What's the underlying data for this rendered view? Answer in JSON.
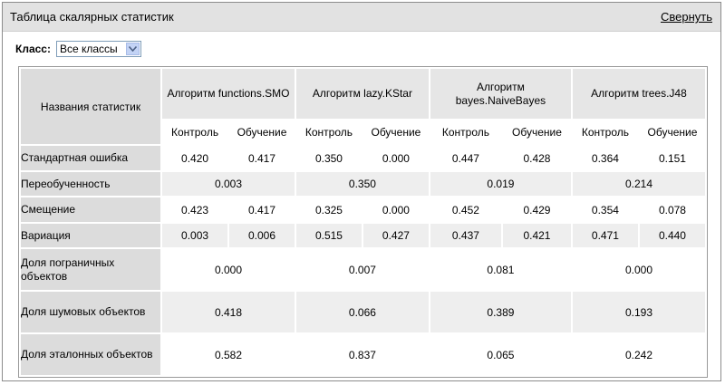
{
  "header": {
    "title": "Таблица скалярных статистик",
    "collapse_label": "Свернуть"
  },
  "class_filter": {
    "label": "Класс:",
    "value": "Все классы"
  },
  "table": {
    "names_header": "Названия статистик",
    "algorithms": [
      {
        "name": "Алгоритм functions.SMO"
      },
      {
        "name": "Алгоритм lazy.KStar"
      },
      {
        "name": "Алгоритм bayes.NaiveBayes"
      },
      {
        "name": "Алгоритм trees.J48"
      }
    ],
    "sub_headers": [
      "Контроль",
      "Обучение"
    ],
    "rows": [
      {
        "name": "Стандартная ошибка",
        "values": [
          "0.420",
          "0.417",
          "0.350",
          "0.000",
          "0.447",
          "0.428",
          "0.364",
          "0.151"
        ]
      },
      {
        "name": "Переобученность",
        "values": [
          "0.003",
          "0.350",
          "0.019",
          "0.214"
        ]
      },
      {
        "name": "Смещение",
        "values": [
          "0.423",
          "0.417",
          "0.325",
          "0.000",
          "0.452",
          "0.429",
          "0.354",
          "0.078"
        ]
      },
      {
        "name": "Вариация",
        "values": [
          "0.003",
          "0.006",
          "0.515",
          "0.427",
          "0.437",
          "0.421",
          "0.471",
          "0.440"
        ]
      },
      {
        "name": "Доля пограничных объектов",
        "values": [
          "0.000",
          "0.007",
          "0.081",
          "0.000"
        ]
      },
      {
        "name": "Доля шумовых объектов",
        "values": [
          "0.418",
          "0.066",
          "0.389",
          "0.193"
        ]
      },
      {
        "name": "Доля эталонных объектов",
        "values": [
          "0.582",
          "0.837",
          "0.065",
          "0.242"
        ]
      }
    ]
  }
}
